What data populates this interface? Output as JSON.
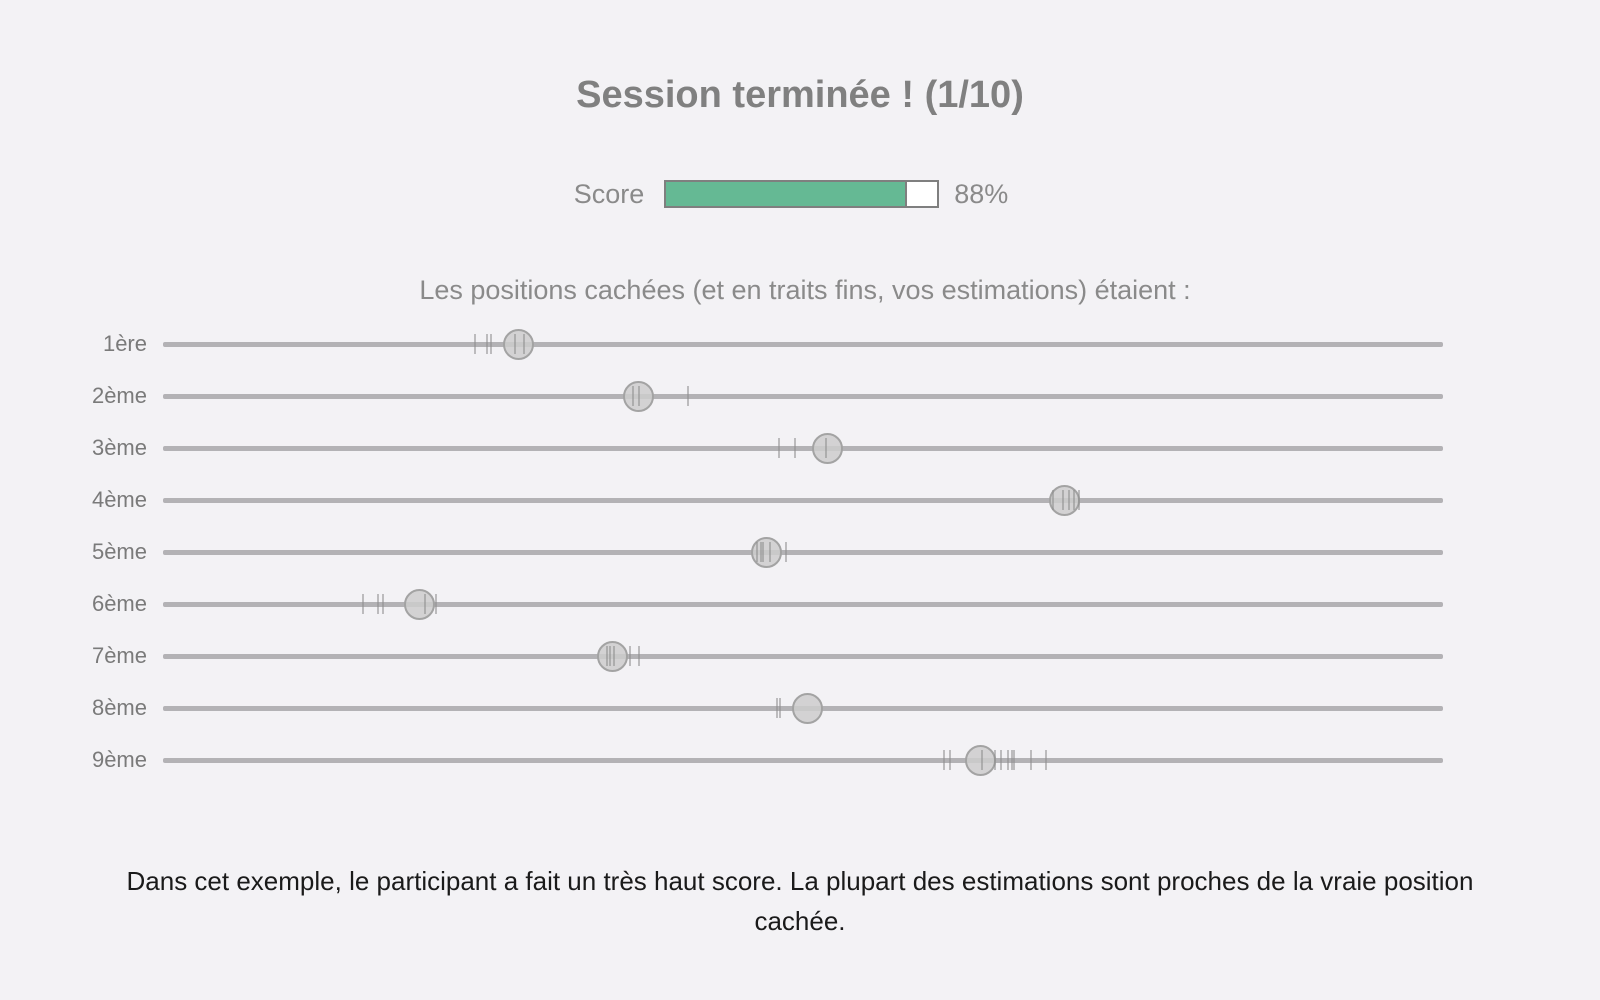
{
  "title": "Session terminée ! (1/10)",
  "score": {
    "label": "Score",
    "value": 0.88,
    "value_text": "88%",
    "fill_color": "#65b994"
  },
  "subtitle": "Les positions cachées (et en traits fins, vos estimations) étaient :",
  "positions_scale": "fraction of track (0 = left end, 1 = right end)",
  "rows": [
    {
      "label": "1ère",
      "hidden": 0.277,
      "estimates": [
        0.244,
        0.253,
        0.256,
        0.275,
        0.282
      ]
    },
    {
      "label": "2ème",
      "hidden": 0.371,
      "estimates": [
        0.367,
        0.372,
        0.41
      ]
    },
    {
      "label": "3ème",
      "hidden": 0.519,
      "estimates": [
        0.481,
        0.494,
        0.518
      ]
    },
    {
      "label": "4ème",
      "hidden": 0.704,
      "estimates": [
        0.695,
        0.703,
        0.708,
        0.712,
        0.716
      ]
    },
    {
      "label": "5ème",
      "hidden": 0.471,
      "estimates": [
        0.464,
        0.467,
        0.469,
        0.474,
        0.487
      ]
    },
    {
      "label": "6ème",
      "hidden": 0.2,
      "estimates": [
        0.156,
        0.168,
        0.172,
        0.205,
        0.213
      ]
    },
    {
      "label": "7ème",
      "hidden": 0.351,
      "estimates": [
        0.347,
        0.349,
        0.352,
        0.365,
        0.372
      ]
    },
    {
      "label": "8ème",
      "hidden": 0.503,
      "estimates": [
        0.48,
        0.482
      ]
    },
    {
      "label": "9ème",
      "hidden": 0.638,
      "estimates": [
        0.61,
        0.615,
        0.64,
        0.65,
        0.655,
        0.66,
        0.663,
        0.665,
        0.678,
        0.69
      ]
    }
  ],
  "caption": "Dans cet exemple, le participant a fait un très haut score. La plupart des estimations sont proches de la vraie position cachée."
}
